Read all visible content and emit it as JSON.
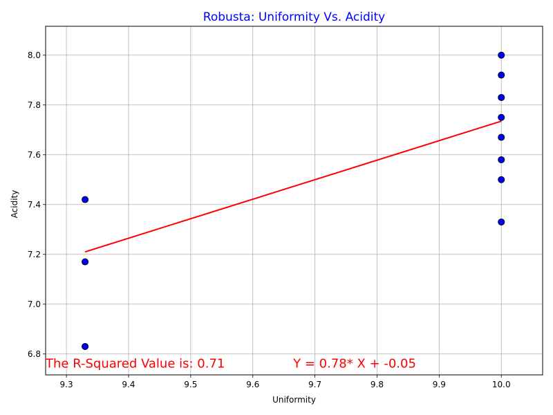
{
  "chart_data": {
    "type": "scatter",
    "title": "Robusta: Uniformity Vs. Acidity",
    "xlabel": "Uniformity",
    "ylabel": "Acidity",
    "xlim": [
      9.2665,
      10.0665
    ],
    "ylim": [
      6.716,
      8.116
    ],
    "xticks": [
      9.3,
      9.4,
      9.5,
      9.6,
      9.7,
      9.8,
      9.9,
      10.0
    ],
    "xtick_labels": [
      "9.3",
      "9.4",
      "9.5",
      "9.6",
      "9.7",
      "9.8",
      "9.9",
      "10.0"
    ],
    "yticks": [
      6.8,
      7.0,
      7.2,
      7.4,
      7.6,
      7.8,
      8.0
    ],
    "ytick_labels": [
      "6.8",
      "7.0",
      "7.2",
      "7.4",
      "7.6",
      "7.8",
      "8.0"
    ],
    "grid": true,
    "points": [
      {
        "x": 10.0,
        "y": 8.0
      },
      {
        "x": 10.0,
        "y": 7.92
      },
      {
        "x": 10.0,
        "y": 7.83
      },
      {
        "x": 10.0,
        "y": 7.75
      },
      {
        "x": 10.0,
        "y": 7.67
      },
      {
        "x": 10.0,
        "y": 7.58
      },
      {
        "x": 10.0,
        "y": 7.5
      },
      {
        "x": 10.0,
        "y": 7.33
      },
      {
        "x": 9.33,
        "y": 7.42
      },
      {
        "x": 9.33,
        "y": 7.17
      },
      {
        "x": 9.33,
        "y": 6.83
      }
    ],
    "regression_line": {
      "x": [
        9.33,
        10.0
      ],
      "y": [
        7.21,
        7.735
      ]
    },
    "annotations": [
      {
        "id": "r2",
        "text": "The R-Squared Value is: 0.71",
        "x": 9.2665,
        "y": 6.745
      },
      {
        "id": "eq",
        "text": "Y = 0.78* X + -0.05",
        "x": 9.665,
        "y": 6.745
      }
    ],
    "colors": {
      "title": "#0000ff",
      "marker_fill": "#0000ff",
      "marker_edge": "#000000",
      "regression": "#ff0000",
      "annotation": "#ff0000",
      "grid": "#b0b0b0"
    }
  }
}
